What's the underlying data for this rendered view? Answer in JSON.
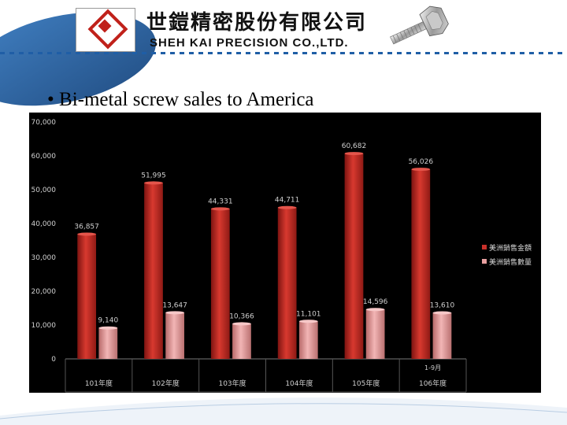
{
  "company": {
    "name_zh": "世鎧精密股份有限公司",
    "name_en": "SHEH KAI PRECISION CO.,LTD."
  },
  "slide": {
    "bullet": "•",
    "title": "Bi-metal screw sales to America"
  },
  "colors": {
    "brand_blue": "#1f5ea6",
    "series_amount": "#c8302a",
    "series_quantity": "#e8a0a0",
    "chart_background": "#000000"
  },
  "chart_data": {
    "type": "bar",
    "categories": [
      "101年度",
      "102年度",
      "103年度",
      "104年度",
      "105年度",
      "106年度"
    ],
    "category_notes": [
      "",
      "",
      "",
      "",
      "",
      "1-9月"
    ],
    "series": [
      {
        "name": "美洲銷售金額",
        "values": [
          36857,
          51995,
          44331,
          44711,
          60682,
          56026
        ]
      },
      {
        "name": "美洲銷售數量",
        "values": [
          9140,
          13647,
          10366,
          11101,
          14596,
          13610
        ]
      }
    ],
    "value_labels": [
      [
        "36,857",
        "51,995",
        "44,331",
        "44,711",
        "60,682",
        "56,026"
      ],
      [
        "9,140",
        "13,647",
        "10,366",
        "11,101",
        "14,596",
        "13,610"
      ]
    ],
    "ylim": [
      0,
      70000
    ],
    "yticks": [
      0,
      10000,
      20000,
      30000,
      40000,
      50000,
      60000,
      70000
    ],
    "ytick_labels": [
      "0",
      "10,000",
      "20,000",
      "30,000",
      "40,000",
      "50,000",
      "60,000",
      "70,000"
    ],
    "grid": false,
    "legend_position": "right"
  }
}
